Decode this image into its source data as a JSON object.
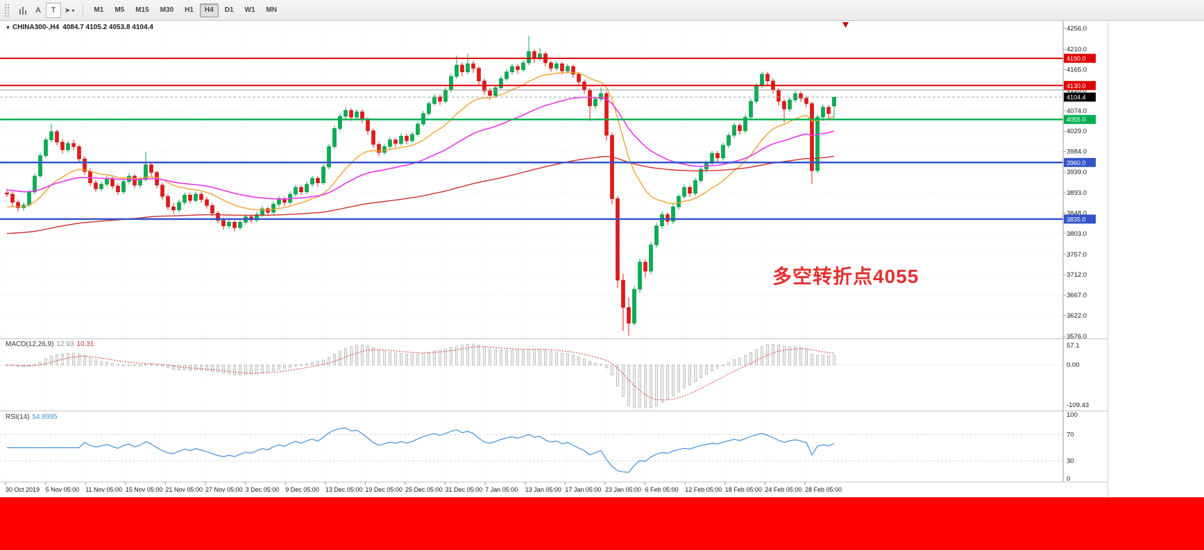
{
  "toolbar": {
    "tool_a": "A",
    "tool_t": "T",
    "cursor_glyph": "➤",
    "dropdown_glyph": "▾",
    "timeframes": [
      "M1",
      "M5",
      "M15",
      "M30",
      "H1",
      "H4",
      "D1",
      "W1",
      "MN"
    ],
    "active_timeframe": "H4"
  },
  "chart": {
    "symbol_period": "CHINA300-,H4",
    "ohlc": "4084.7 4105.2 4053.8 4104.4",
    "annotation": "多空转折点4055",
    "annotation_color": "#e53030"
  },
  "macd": {
    "name": "MACD(12,26,9)",
    "main": "12.93",
    "signal": "10.31"
  },
  "rsi": {
    "name": "RSI(14)",
    "value": "54.8995"
  },
  "colors": {
    "up": "#00b050",
    "up_border": "#00813a",
    "down": "#e81717",
    "down_border": "#b01010",
    "grid": "#e4e4e4",
    "axis_line": "#9a9a9a",
    "panel_border": "#c0c0c0",
    "ma_fast": "#f0a030",
    "ma_mid": "#e83ee8",
    "ma_slow": "#cf2e2e",
    "rsi_line": "#3f8fd6",
    "macd_bar_fill": "#f0f0f0",
    "macd_bar_stroke": "#9f9f9f",
    "macd_signal": "#e03232",
    "current_price_box": "#000000",
    "red_banner": "#fe0000",
    "shift_marker": "#cc0000"
  },
  "chart_data": {
    "type": "candlestick",
    "symbol": "CHINA300-",
    "timeframe": "H4",
    "ohlc_current": {
      "open": 4084.7,
      "high": 4105.2,
      "low": 4053.8,
      "close": 4104.4
    },
    "current_price": 4104.4,
    "current_price_label": "4104.4",
    "price_range": [
      3576.0,
      4256.0
    ],
    "y_ticks": [
      "4256.0",
      "4210.0",
      "4165.0",
      "4120.0",
      "4074.0",
      "4029.0",
      "3984.0",
      "3939.0",
      "3893.0",
      "3848.0",
      "3803.0",
      "3757.0",
      "3712.0",
      "3667.0",
      "3622.0",
      "3576.0"
    ],
    "x_ticks": [
      "30 Oct 2019",
      "5 Nov 05:00",
      "11 Nov 05:00",
      "15 Nov 05:00",
      "21 Nov 05:00",
      "27 Nov 05:00",
      "3 Dec 05:00",
      "9 Dec 05:00",
      "13 Dec 05:00",
      "19 Dec 05:00",
      "25 Dec 05:00",
      "31 Dec 05:00",
      "7 Jan 05:00",
      "13 Jan 05:00",
      "17 Jan 05:00",
      "23 Jan 05:00",
      "6 Feb 05:00",
      "12 Feb 05:00",
      "18 Feb 05:00",
      "24 Feb 05:00",
      "28 Feb 05:00"
    ],
    "levels": [
      {
        "price": 4190.0,
        "color": "#dd0000",
        "width": 2,
        "label": "4190.0",
        "boxed": true
      },
      {
        "price": 4130.0,
        "color": "#dd0000",
        "width": 2,
        "label": "4130.0",
        "boxed": true
      },
      {
        "price": 4120.0,
        "color": "#9a9a9a",
        "width": 1,
        "label": "",
        "boxed": false
      },
      {
        "price": 4055.0,
        "color": "#00b050",
        "width": 2.5,
        "label": "4055.0",
        "boxed": true
      },
      {
        "price": 3960.0,
        "color": "#3353c8",
        "width": 2.5,
        "label": "3960.0",
        "boxed": true
      },
      {
        "price": 3835.0,
        "color": "#3353c8",
        "width": 2.5,
        "label": "3835.0",
        "boxed": true
      }
    ],
    "moving_averages": [
      {
        "period": 18,
        "seed": 3858,
        "color": "#f0a030",
        "width": 1.4
      },
      {
        "period": 45,
        "seed": 3900,
        "color": "#e83ee8",
        "width": 1.7
      },
      {
        "period": 160,
        "seed": 3802,
        "color": "#cf2e2e",
        "width": 1.4
      }
    ],
    "candles": [
      [
        3893,
        3901,
        3884,
        3890
      ],
      [
        3890,
        3896,
        3864,
        3872
      ],
      [
        3872,
        3878,
        3851,
        3860
      ],
      [
        3860,
        3872,
        3853,
        3866
      ],
      [
        3866,
        3900,
        3862,
        3895
      ],
      [
        3895,
        3936,
        3890,
        3930
      ],
      [
        3930,
        3981,
        3926,
        3975
      ],
      [
        3975,
        4016,
        3970,
        4010
      ],
      [
        4010,
        4046,
        4004,
        4028
      ],
      [
        4028,
        4033,
        3998,
        4005
      ],
      [
        4005,
        4012,
        3980,
        3988
      ],
      [
        3988,
        4008,
        3982,
        4002
      ],
      [
        4002,
        4010,
        3987,
        3995
      ],
      [
        3995,
        3999,
        3960,
        3968
      ],
      [
        3968,
        3974,
        3933,
        3940
      ],
      [
        3940,
        3947,
        3908,
        3915
      ],
      [
        3915,
        3921,
        3895,
        3902
      ],
      [
        3902,
        3918,
        3896,
        3912
      ],
      [
        3912,
        3931,
        3906,
        3925
      ],
      [
        3925,
        3929,
        3901,
        3908
      ],
      [
        3908,
        3914,
        3888,
        3895
      ],
      [
        3895,
        3924,
        3890,
        3918
      ],
      [
        3918,
        3937,
        3912,
        3930
      ],
      [
        3930,
        3934,
        3903,
        3910
      ],
      [
        3910,
        3928,
        3904,
        3922
      ],
      [
        3922,
        3984,
        3918,
        3955
      ],
      [
        3955,
        3960,
        3930,
        3938
      ],
      [
        3938,
        3942,
        3903,
        3910
      ],
      [
        3910,
        3915,
        3878,
        3885
      ],
      [
        3885,
        3890,
        3855,
        3862
      ],
      [
        3862,
        3870,
        3846,
        3855
      ],
      [
        3855,
        3878,
        3850,
        3872
      ],
      [
        3872,
        3894,
        3866,
        3888
      ],
      [
        3888,
        3893,
        3869,
        3876
      ],
      [
        3876,
        3896,
        3871,
        3890
      ],
      [
        3890,
        3895,
        3871,
        3878
      ],
      [
        3878,
        3884,
        3858,
        3865
      ],
      [
        3865,
        3870,
        3841,
        3848
      ],
      [
        3848,
        3853,
        3825,
        3832
      ],
      [
        3832,
        3838,
        3812,
        3820
      ],
      [
        3820,
        3834,
        3814,
        3828
      ],
      [
        3828,
        3832,
        3808,
        3816
      ],
      [
        3816,
        3834,
        3811,
        3828
      ],
      [
        3828,
        3846,
        3822,
        3840
      ],
      [
        3840,
        3845,
        3826,
        3833
      ],
      [
        3833,
        3851,
        3828,
        3845
      ],
      [
        3845,
        3864,
        3840,
        3858
      ],
      [
        3858,
        3862,
        3843,
        3850
      ],
      [
        3850,
        3874,
        3845,
        3868
      ],
      [
        3868,
        3886,
        3862,
        3880
      ],
      [
        3880,
        3885,
        3864,
        3872
      ],
      [
        3872,
        3896,
        3867,
        3890
      ],
      [
        3890,
        3911,
        3885,
        3905
      ],
      [
        3905,
        3910,
        3888,
        3895
      ],
      [
        3895,
        3918,
        3890,
        3912
      ],
      [
        3912,
        3931,
        3906,
        3925
      ],
      [
        3925,
        3930,
        3907,
        3915
      ],
      [
        3915,
        3956,
        3910,
        3950
      ],
      [
        3950,
        4001,
        3945,
        3995
      ],
      [
        3995,
        4041,
        3990,
        4035
      ],
      [
        4035,
        4068,
        4030,
        4062
      ],
      [
        4062,
        4082,
        4055,
        4075
      ],
      [
        4075,
        4080,
        4052,
        4060
      ],
      [
        4060,
        4078,
        4054,
        4072
      ],
      [
        4072,
        4077,
        4047,
        4055
      ],
      [
        4055,
        4060,
        4022,
        4030
      ],
      [
        4030,
        4035,
        3992,
        4000
      ],
      [
        4000,
        4006,
        3974,
        3982
      ],
      [
        3982,
        4001,
        3977,
        3995
      ],
      [
        3995,
        4016,
        3990,
        4010
      ],
      [
        4010,
        4015,
        3994,
        4002
      ],
      [
        4002,
        4024,
        3997,
        4018
      ],
      [
        4018,
        4023,
        4000,
        4008
      ],
      [
        4008,
        4028,
        4003,
        4022
      ],
      [
        4022,
        4051,
        4017,
        4045
      ],
      [
        4045,
        4074,
        4040,
        4068
      ],
      [
        4068,
        4096,
        4063,
        4090
      ],
      [
        4090,
        4111,
        4085,
        4105
      ],
      [
        4105,
        4110,
        4087,
        4095
      ],
      [
        4095,
        4126,
        4090,
        4120
      ],
      [
        4120,
        4156,
        4115,
        4150
      ],
      [
        4150,
        4196,
        4145,
        4175
      ],
      [
        4175,
        4181,
        4150,
        4160
      ],
      [
        4160,
        4200,
        4155,
        4178
      ],
      [
        4178,
        4184,
        4158,
        4168
      ],
      [
        4168,
        4172,
        4132,
        4140
      ],
      [
        4140,
        4145,
        4110,
        4118
      ],
      [
        4118,
        4124,
        4098,
        4108
      ],
      [
        4108,
        4131,
        4103,
        4125
      ],
      [
        4125,
        4151,
        4120,
        4145
      ],
      [
        4145,
        4166,
        4140,
        4160
      ],
      [
        4160,
        4178,
        4154,
        4172
      ],
      [
        4172,
        4177,
        4156,
        4165
      ],
      [
        4165,
        4186,
        4160,
        4180
      ],
      [
        4180,
        4240,
        4175,
        4205
      ],
      [
        4205,
        4210,
        4180,
        4190
      ],
      [
        4190,
        4212,
        4185,
        4200
      ],
      [
        4200,
        4205,
        4172,
        4180
      ],
      [
        4180,
        4185,
        4160,
        4168
      ],
      [
        4168,
        4184,
        4162,
        4178
      ],
      [
        4178,
        4182,
        4154,
        4162
      ],
      [
        4162,
        4178,
        4156,
        4172
      ],
      [
        4172,
        4176,
        4147,
        4155
      ],
      [
        4155,
        4160,
        4130,
        4138
      ],
      [
        4138,
        4143,
        4112,
        4120
      ],
      [
        4120,
        4124,
        4052,
        4085
      ],
      [
        4085,
        4106,
        4078,
        4100
      ],
      [
        4100,
        4126,
        4094,
        4112
      ],
      [
        4112,
        4117,
        4008,
        4020
      ],
      [
        4020,
        4026,
        3868,
        3880
      ],
      [
        3880,
        3886,
        3682,
        3700
      ],
      [
        3700,
        3714,
        3588,
        3640
      ],
      [
        3640,
        3662,
        3578,
        3605
      ],
      [
        3605,
        3688,
        3600,
        3680
      ],
      [
        3680,
        3748,
        3672,
        3740
      ],
      [
        3740,
        3746,
        3706,
        3720
      ],
      [
        3720,
        3784,
        3714,
        3778
      ],
      [
        3778,
        3827,
        3772,
        3820
      ],
      [
        3820,
        3852,
        3814,
        3845
      ],
      [
        3845,
        3850,
        3822,
        3830
      ],
      [
        3830,
        3868,
        3824,
        3862
      ],
      [
        3862,
        3891,
        3856,
        3885
      ],
      [
        3885,
        3912,
        3880,
        3905
      ],
      [
        3905,
        3910,
        3884,
        3892
      ],
      [
        3892,
        3926,
        3886,
        3920
      ],
      [
        3920,
        3951,
        3914,
        3945
      ],
      [
        3945,
        3964,
        3938,
        3958
      ],
      [
        3958,
        3986,
        3952,
        3980
      ],
      [
        3980,
        3985,
        3961,
        3970
      ],
      [
        3970,
        4004,
        3964,
        3998
      ],
      [
        3998,
        4026,
        3992,
        4020
      ],
      [
        4020,
        4048,
        4014,
        4042
      ],
      [
        4042,
        4047,
        4021,
        4030
      ],
      [
        4030,
        4066,
        4024,
        4060
      ],
      [
        4060,
        4101,
        4054,
        4095
      ],
      [
        4095,
        4136,
        4090,
        4130
      ],
      [
        4130,
        4161,
        4124,
        4155
      ],
      [
        4155,
        4160,
        4131,
        4140
      ],
      [
        4140,
        4145,
        4112,
        4120
      ],
      [
        4120,
        4125,
        4086,
        4095
      ],
      [
        4095,
        4100,
        4048,
        4078
      ],
      [
        4078,
        4104,
        4072,
        4098
      ],
      [
        4098,
        4118,
        4092,
        4112
      ],
      [
        4112,
        4117,
        4094,
        4102
      ],
      [
        4102,
        4107,
        4082,
        4090
      ],
      [
        4090,
        4094,
        3912,
        3942
      ],
      [
        3942,
        4066,
        3936,
        4060
      ],
      [
        4060,
        4088,
        4052,
        4082
      ],
      [
        4082,
        4087,
        4058,
        4068
      ],
      [
        4084.7,
        4105.2,
        4053.8,
        4104.4
      ]
    ],
    "macd": {
      "fast": 12,
      "slow": 26,
      "signal_period": 9,
      "scale": [
        57.1,
        -109.43
      ],
      "axis_labels": [
        "57.1",
        "0.00",
        "-109.43"
      ]
    },
    "rsi": {
      "period": 14,
      "levels": [
        70,
        30
      ],
      "scale": [
        0,
        100
      ],
      "axis_labels": [
        "100",
        "70",
        "30",
        "0"
      ]
    }
  }
}
